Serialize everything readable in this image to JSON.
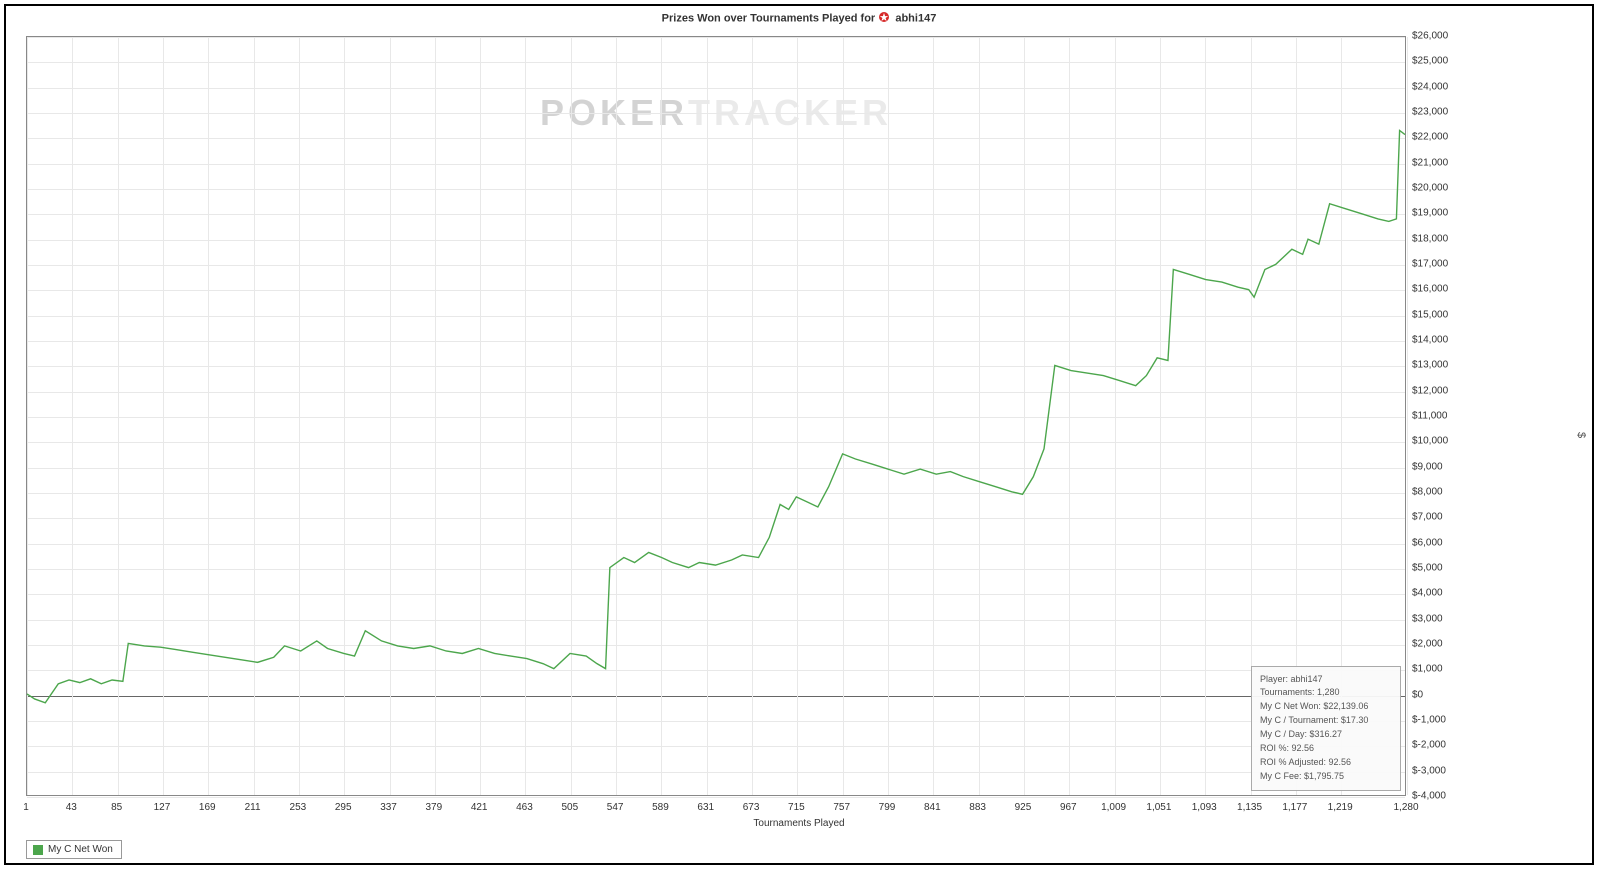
{
  "chart": {
    "type": "line",
    "title_prefix": "Prizes Won over Tournaments Played for",
    "title_player": "abhi147",
    "title_fontsize": 11,
    "watermark_text_dark": "POKER",
    "watermark_text_light": "TRACKER",
    "x_axis_title": "Tournaments Played",
    "y_axis_title": "$",
    "background_color": "#ffffff",
    "frame_color": "#000000",
    "plot_border_color": "#888888",
    "grid_color": "#e8e8e8",
    "zero_line_color": "#666666",
    "label_fontsize": 10,
    "axis_title_fontsize": 10,
    "line_color": "#4ca64c",
    "line_width": 1.4,
    "xlim": [
      1,
      1280
    ],
    "ylim": [
      -4000,
      26000
    ],
    "x_ticks": [
      1,
      43,
      85,
      127,
      169,
      211,
      253,
      295,
      337,
      379,
      421,
      463,
      505,
      547,
      589,
      631,
      673,
      715,
      757,
      799,
      841,
      883,
      925,
      967,
      1009,
      1051,
      1093,
      1135,
      1177,
      1219,
      1280
    ],
    "x_tick_labels": [
      "1",
      "43",
      "85",
      "127",
      "169",
      "211",
      "253",
      "295",
      "337",
      "379",
      "421",
      "463",
      "505",
      "547",
      "589",
      "631",
      "673",
      "715",
      "757",
      "799",
      "841",
      "883",
      "925",
      "967",
      "1,009",
      "1,051",
      "1,093",
      "1,135",
      "1,177",
      "1,219",
      "1,280"
    ],
    "y_ticks": [
      -4000,
      -3000,
      -2000,
      -1000,
      0,
      1000,
      2000,
      3000,
      4000,
      5000,
      6000,
      7000,
      8000,
      9000,
      10000,
      11000,
      12000,
      13000,
      14000,
      15000,
      16000,
      17000,
      18000,
      19000,
      20000,
      21000,
      22000,
      23000,
      24000,
      25000,
      26000
    ],
    "y_tick_labels": [
      "$-4,000",
      "$-3,000",
      "$-2,000",
      "$-1,000",
      "$0",
      "$1,000",
      "$2,000",
      "$3,000",
      "$4,000",
      "$5,000",
      "$6,000",
      "$7,000",
      "$8,000",
      "$9,000",
      "$10,000",
      "$11,000",
      "$12,000",
      "$13,000",
      "$14,000",
      "$15,000",
      "$16,000",
      "$17,000",
      "$18,000",
      "$19,000",
      "$20,000",
      "$21,000",
      "$22,000",
      "$23,000",
      "$24,000",
      "$25,000",
      "$26,000"
    ],
    "series": [
      {
        "x": 1,
        "y": 0
      },
      {
        "x": 8,
        "y": -200
      },
      {
        "x": 18,
        "y": -350
      },
      {
        "x": 30,
        "y": 400
      },
      {
        "x": 40,
        "y": 550
      },
      {
        "x": 50,
        "y": 450
      },
      {
        "x": 60,
        "y": 600
      },
      {
        "x": 70,
        "y": 400
      },
      {
        "x": 80,
        "y": 550
      },
      {
        "x": 90,
        "y": 500
      },
      {
        "x": 95,
        "y": 2000
      },
      {
        "x": 110,
        "y": 1900
      },
      {
        "x": 125,
        "y": 1850
      },
      {
        "x": 140,
        "y": 1750
      },
      {
        "x": 155,
        "y": 1650
      },
      {
        "x": 170,
        "y": 1550
      },
      {
        "x": 185,
        "y": 1450
      },
      {
        "x": 200,
        "y": 1350
      },
      {
        "x": 215,
        "y": 1250
      },
      {
        "x": 230,
        "y": 1450
      },
      {
        "x": 240,
        "y": 1900
      },
      {
        "x": 255,
        "y": 1700
      },
      {
        "x": 270,
        "y": 2100
      },
      {
        "x": 280,
        "y": 1800
      },
      {
        "x": 295,
        "y": 1600
      },
      {
        "x": 305,
        "y": 1500
      },
      {
        "x": 315,
        "y": 2500
      },
      {
        "x": 330,
        "y": 2100
      },
      {
        "x": 345,
        "y": 1900
      },
      {
        "x": 360,
        "y": 1800
      },
      {
        "x": 375,
        "y": 1900
      },
      {
        "x": 390,
        "y": 1700
      },
      {
        "x": 405,
        "y": 1600
      },
      {
        "x": 420,
        "y": 1800
      },
      {
        "x": 435,
        "y": 1600
      },
      {
        "x": 450,
        "y": 1500
      },
      {
        "x": 465,
        "y": 1400
      },
      {
        "x": 480,
        "y": 1200
      },
      {
        "x": 490,
        "y": 1000
      },
      {
        "x": 505,
        "y": 1600
      },
      {
        "x": 520,
        "y": 1500
      },
      {
        "x": 530,
        "y": 1200
      },
      {
        "x": 538,
        "y": 1000
      },
      {
        "x": 542,
        "y": 5000
      },
      {
        "x": 555,
        "y": 5400
      },
      {
        "x": 565,
        "y": 5200
      },
      {
        "x": 578,
        "y": 5600
      },
      {
        "x": 590,
        "y": 5400
      },
      {
        "x": 600,
        "y": 5200
      },
      {
        "x": 615,
        "y": 5000
      },
      {
        "x": 625,
        "y": 5200
      },
      {
        "x": 640,
        "y": 5100
      },
      {
        "x": 655,
        "y": 5300
      },
      {
        "x": 665,
        "y": 5500
      },
      {
        "x": 680,
        "y": 5400
      },
      {
        "x": 690,
        "y": 6200
      },
      {
        "x": 700,
        "y": 7500
      },
      {
        "x": 708,
        "y": 7300
      },
      {
        "x": 715,
        "y": 7800
      },
      {
        "x": 725,
        "y": 7600
      },
      {
        "x": 735,
        "y": 7400
      },
      {
        "x": 745,
        "y": 8200
      },
      {
        "x": 758,
        "y": 9500
      },
      {
        "x": 770,
        "y": 9300
      },
      {
        "x": 785,
        "y": 9100
      },
      {
        "x": 800,
        "y": 8900
      },
      {
        "x": 815,
        "y": 8700
      },
      {
        "x": 830,
        "y": 8900
      },
      {
        "x": 845,
        "y": 8700
      },
      {
        "x": 858,
        "y": 8800
      },
      {
        "x": 870,
        "y": 8600
      },
      {
        "x": 885,
        "y": 8400
      },
      {
        "x": 900,
        "y": 8200
      },
      {
        "x": 915,
        "y": 8000
      },
      {
        "x": 925,
        "y": 7900
      },
      {
        "x": 935,
        "y": 8600
      },
      {
        "x": 945,
        "y": 9700
      },
      {
        "x": 955,
        "y": 13000
      },
      {
        "x": 970,
        "y": 12800
      },
      {
        "x": 985,
        "y": 12700
      },
      {
        "x": 1000,
        "y": 12600
      },
      {
        "x": 1015,
        "y": 12400
      },
      {
        "x": 1030,
        "y": 12200
      },
      {
        "x": 1040,
        "y": 12600
      },
      {
        "x": 1050,
        "y": 13300
      },
      {
        "x": 1060,
        "y": 13200
      },
      {
        "x": 1065,
        "y": 16800
      },
      {
        "x": 1080,
        "y": 16600
      },
      {
        "x": 1095,
        "y": 16400
      },
      {
        "x": 1110,
        "y": 16300
      },
      {
        "x": 1125,
        "y": 16100
      },
      {
        "x": 1135,
        "y": 16000
      },
      {
        "x": 1140,
        "y": 15700
      },
      {
        "x": 1150,
        "y": 16800
      },
      {
        "x": 1160,
        "y": 17000
      },
      {
        "x": 1175,
        "y": 17600
      },
      {
        "x": 1185,
        "y": 17400
      },
      {
        "x": 1190,
        "y": 18000
      },
      {
        "x": 1200,
        "y": 17800
      },
      {
        "x": 1210,
        "y": 19400
      },
      {
        "x": 1225,
        "y": 19200
      },
      {
        "x": 1240,
        "y": 19000
      },
      {
        "x": 1255,
        "y": 18800
      },
      {
        "x": 1265,
        "y": 18700
      },
      {
        "x": 1272,
        "y": 18800
      },
      {
        "x": 1275,
        "y": 22300
      },
      {
        "x": 1280,
        "y": 22139
      }
    ]
  },
  "stats_box": {
    "border_color": "#aaaaaa",
    "background_color": "rgba(250,250,250,0.95)",
    "text_color": "#555555",
    "fontsize": 9,
    "rows": [
      {
        "label": "Player:",
        "value": "abhi147"
      },
      {
        "label": "Tournaments:",
        "value": "1,280"
      },
      {
        "label": "My C Net Won:",
        "value": "$22,139.06"
      },
      {
        "label": "My C / Tournament:",
        "value": "$17.30"
      },
      {
        "label": "My C / Day:",
        "value": "$316.27"
      },
      {
        "label": "ROI %:",
        "value": "92.56"
      },
      {
        "label": "ROI % Adjusted:",
        "value": "92.56"
      },
      {
        "label": "My C Fee:",
        "value": "$1,795.75"
      }
    ]
  },
  "legend": {
    "swatch_color": "#4ca64c",
    "border_color": "#999999",
    "label": "My C Net Won",
    "fontsize": 10
  },
  "player_icon_color": "#d62828"
}
